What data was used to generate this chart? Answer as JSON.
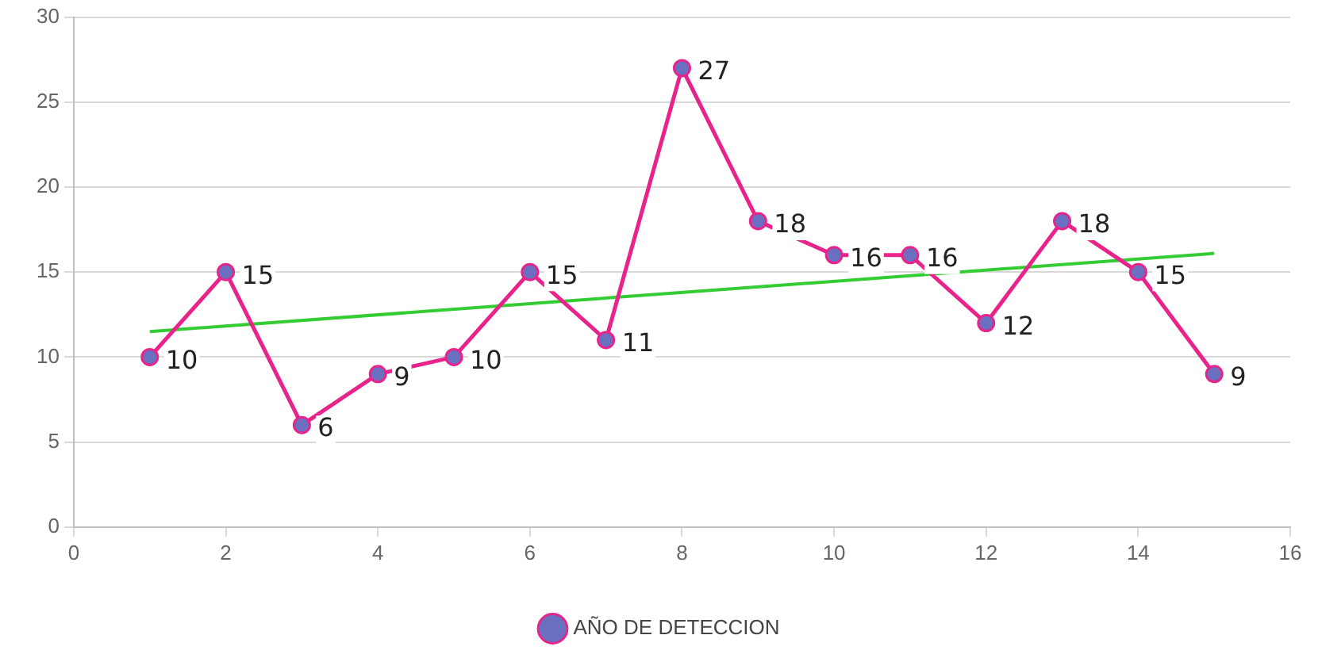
{
  "chart_data": {
    "type": "line",
    "x": [
      1,
      2,
      3,
      4,
      5,
      6,
      7,
      8,
      9,
      10,
      11,
      12,
      13,
      14,
      15
    ],
    "series": [
      {
        "name": "AÑO DE DETECCION",
        "color": "#e8248c",
        "colors": [
          "#6b6fbf",
          "#6b6fbf",
          "#6b6fbf",
          "#6b6fbf",
          "#6b6fbf",
          "#6b6fbf",
          "#6b6fbf",
          "#6b6fbf",
          "#6b6fbf",
          "#6b6fbf",
          "#6b6fbf",
          "#6b6fbf",
          "#6b6fbf",
          "#6b6fbf",
          "#6b6fbf"
        ],
        "values": [
          10,
          15,
          6,
          9,
          10,
          15,
          11,
          27,
          18,
          16,
          16,
          12,
          18,
          15,
          9
        ],
        "value_labels": [
          "10",
          "15",
          "6",
          "9",
          "10",
          "15",
          "11",
          "27",
          "18",
          "16",
          "16",
          "12",
          "18",
          "15",
          "9"
        ]
      },
      {
        "type": "line",
        "color": "#33cc33",
        "x": [
          1,
          15
        ],
        "values": [
          11.5,
          16.1
        ],
        "marker": "none"
      }
    ],
    "xlim": [
      0,
      16
    ],
    "xticks": [
      0,
      2,
      4,
      6,
      8,
      10,
      12,
      14,
      16
    ],
    "ylim": [
      0,
      30
    ],
    "yticks": [
      0,
      5,
      10,
      15,
      20,
      25,
      30
    ],
    "grid": "y",
    "legend": "bottom",
    "marker": "circle",
    "line_style": "solid"
  }
}
